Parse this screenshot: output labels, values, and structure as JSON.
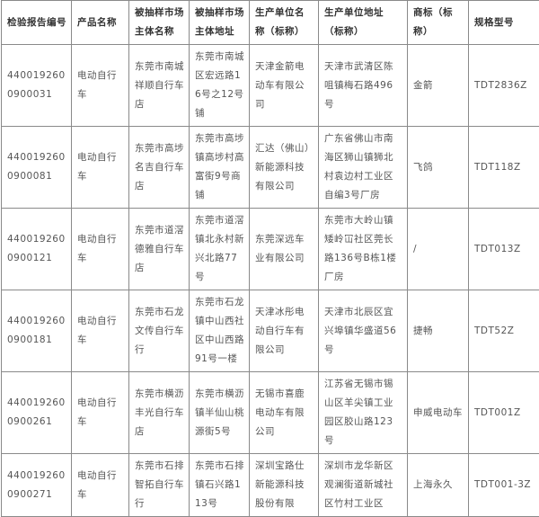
{
  "headers": [
    "检验报告编号",
    "产品名称",
    "被抽样市场主体名称",
    "被抽样市场主体地址",
    "生产单位名称（标称）",
    "生产单位地址（标称）",
    "商标（标称）",
    "规格型号"
  ],
  "rows": [
    [
      "4400192600900031",
      "电动自行车",
      "东莞市南城祥顺自行车店",
      "东莞市南城区宏远路16号之12号铺",
      "天津金箭电动车有限公司",
      "天津市武清区陈咀镇梅石路496号",
      "金箭",
      "TDT2836Z"
    ],
    [
      "4400192600900081",
      "电动自行车",
      "东莞市高埗名吉自行车店",
      "东莞市高埗镇高埗村高富街9号商铺",
      "汇达（佛山）新能源科技有限公司",
      "广东省佛山市南海区狮山镇狮北村袁边村工业区自编3号厂房",
      "飞鸽",
      "TDT118Z"
    ],
    [
      "4400192600900121",
      "电动自行车",
      "东莞市道滘德雅自行车店",
      "东莞市道滘镇北永村新兴北路77号",
      "东莞深远车业有限公司",
      "东莞市大岭山镇矮岭冚社区莞长路136号B栋1楼厂房",
      "/",
      "TDT013Z"
    ],
    [
      "4400192600900181",
      "电动自行车",
      "东莞市石龙文传自行车行",
      "东莞市石龙镇中山西社区中山西路91号一楼",
      "天津冰彤电动自行车有限公司",
      "天津市北辰区宜兴埠镇华盛道56号",
      "捷畅",
      "TDT52Z"
    ],
    [
      "4400192600900261",
      "电动自行车",
      "东莞市横沥丰光自行车店",
      "东莞市横沥镇半仙山桃源街5号",
      "无锡市喜鹿电动车有限公司",
      "江苏省无锡市锡山区羊尖镇工业园区胶山路123号",
      "申威电动车",
      "TDT001Z"
    ],
    [
      "4400192600900271",
      "电动自行车",
      "东莞市石排智拓自行车行",
      "东莞市石排镇石兴路113号",
      "深圳宝路仕新能源科技股份有限",
      "深圳市龙华新区观澜街道新城社区竹村工业区",
      "上海永久",
      "TDT001-3Z"
    ]
  ]
}
